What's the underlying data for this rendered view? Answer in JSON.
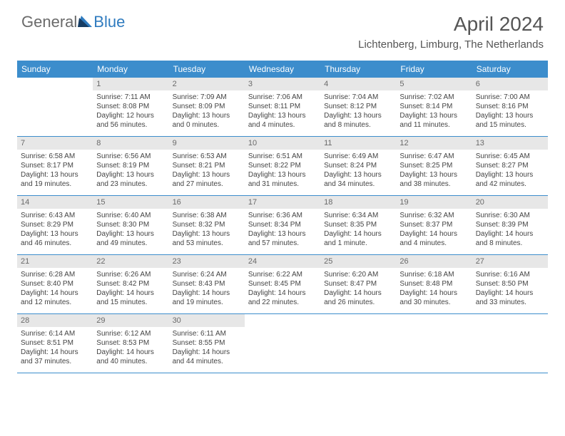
{
  "brand": {
    "part1": "General",
    "part2": "Blue"
  },
  "title": "April 2024",
  "location": "Lichtenberg, Limburg, The Netherlands",
  "colors": {
    "header_bg": "#3c8dcc",
    "header_text": "#ffffff",
    "daynum_bg": "#e7e7e7",
    "border": "#3c8dcc"
  },
  "day_names": [
    "Sunday",
    "Monday",
    "Tuesday",
    "Wednesday",
    "Thursday",
    "Friday",
    "Saturday"
  ],
  "weeks": [
    [
      {
        "n": "",
        "sr": "",
        "ss": "",
        "dl": ""
      },
      {
        "n": "1",
        "sr": "Sunrise: 7:11 AM",
        "ss": "Sunset: 8:08 PM",
        "dl": "Daylight: 12 hours and 56 minutes."
      },
      {
        "n": "2",
        "sr": "Sunrise: 7:09 AM",
        "ss": "Sunset: 8:09 PM",
        "dl": "Daylight: 13 hours and 0 minutes."
      },
      {
        "n": "3",
        "sr": "Sunrise: 7:06 AM",
        "ss": "Sunset: 8:11 PM",
        "dl": "Daylight: 13 hours and 4 minutes."
      },
      {
        "n": "4",
        "sr": "Sunrise: 7:04 AM",
        "ss": "Sunset: 8:12 PM",
        "dl": "Daylight: 13 hours and 8 minutes."
      },
      {
        "n": "5",
        "sr": "Sunrise: 7:02 AM",
        "ss": "Sunset: 8:14 PM",
        "dl": "Daylight: 13 hours and 11 minutes."
      },
      {
        "n": "6",
        "sr": "Sunrise: 7:00 AM",
        "ss": "Sunset: 8:16 PM",
        "dl": "Daylight: 13 hours and 15 minutes."
      }
    ],
    [
      {
        "n": "7",
        "sr": "Sunrise: 6:58 AM",
        "ss": "Sunset: 8:17 PM",
        "dl": "Daylight: 13 hours and 19 minutes."
      },
      {
        "n": "8",
        "sr": "Sunrise: 6:56 AM",
        "ss": "Sunset: 8:19 PM",
        "dl": "Daylight: 13 hours and 23 minutes."
      },
      {
        "n": "9",
        "sr": "Sunrise: 6:53 AM",
        "ss": "Sunset: 8:21 PM",
        "dl": "Daylight: 13 hours and 27 minutes."
      },
      {
        "n": "10",
        "sr": "Sunrise: 6:51 AM",
        "ss": "Sunset: 8:22 PM",
        "dl": "Daylight: 13 hours and 31 minutes."
      },
      {
        "n": "11",
        "sr": "Sunrise: 6:49 AM",
        "ss": "Sunset: 8:24 PM",
        "dl": "Daylight: 13 hours and 34 minutes."
      },
      {
        "n": "12",
        "sr": "Sunrise: 6:47 AM",
        "ss": "Sunset: 8:25 PM",
        "dl": "Daylight: 13 hours and 38 minutes."
      },
      {
        "n": "13",
        "sr": "Sunrise: 6:45 AM",
        "ss": "Sunset: 8:27 PM",
        "dl": "Daylight: 13 hours and 42 minutes."
      }
    ],
    [
      {
        "n": "14",
        "sr": "Sunrise: 6:43 AM",
        "ss": "Sunset: 8:29 PM",
        "dl": "Daylight: 13 hours and 46 minutes."
      },
      {
        "n": "15",
        "sr": "Sunrise: 6:40 AM",
        "ss": "Sunset: 8:30 PM",
        "dl": "Daylight: 13 hours and 49 minutes."
      },
      {
        "n": "16",
        "sr": "Sunrise: 6:38 AM",
        "ss": "Sunset: 8:32 PM",
        "dl": "Daylight: 13 hours and 53 minutes."
      },
      {
        "n": "17",
        "sr": "Sunrise: 6:36 AM",
        "ss": "Sunset: 8:34 PM",
        "dl": "Daylight: 13 hours and 57 minutes."
      },
      {
        "n": "18",
        "sr": "Sunrise: 6:34 AM",
        "ss": "Sunset: 8:35 PM",
        "dl": "Daylight: 14 hours and 1 minute."
      },
      {
        "n": "19",
        "sr": "Sunrise: 6:32 AM",
        "ss": "Sunset: 8:37 PM",
        "dl": "Daylight: 14 hours and 4 minutes."
      },
      {
        "n": "20",
        "sr": "Sunrise: 6:30 AM",
        "ss": "Sunset: 8:39 PM",
        "dl": "Daylight: 14 hours and 8 minutes."
      }
    ],
    [
      {
        "n": "21",
        "sr": "Sunrise: 6:28 AM",
        "ss": "Sunset: 8:40 PM",
        "dl": "Daylight: 14 hours and 12 minutes."
      },
      {
        "n": "22",
        "sr": "Sunrise: 6:26 AM",
        "ss": "Sunset: 8:42 PM",
        "dl": "Daylight: 14 hours and 15 minutes."
      },
      {
        "n": "23",
        "sr": "Sunrise: 6:24 AM",
        "ss": "Sunset: 8:43 PM",
        "dl": "Daylight: 14 hours and 19 minutes."
      },
      {
        "n": "24",
        "sr": "Sunrise: 6:22 AM",
        "ss": "Sunset: 8:45 PM",
        "dl": "Daylight: 14 hours and 22 minutes."
      },
      {
        "n": "25",
        "sr": "Sunrise: 6:20 AM",
        "ss": "Sunset: 8:47 PM",
        "dl": "Daylight: 14 hours and 26 minutes."
      },
      {
        "n": "26",
        "sr": "Sunrise: 6:18 AM",
        "ss": "Sunset: 8:48 PM",
        "dl": "Daylight: 14 hours and 30 minutes."
      },
      {
        "n": "27",
        "sr": "Sunrise: 6:16 AM",
        "ss": "Sunset: 8:50 PM",
        "dl": "Daylight: 14 hours and 33 minutes."
      }
    ],
    [
      {
        "n": "28",
        "sr": "Sunrise: 6:14 AM",
        "ss": "Sunset: 8:51 PM",
        "dl": "Daylight: 14 hours and 37 minutes."
      },
      {
        "n": "29",
        "sr": "Sunrise: 6:12 AM",
        "ss": "Sunset: 8:53 PM",
        "dl": "Daylight: 14 hours and 40 minutes."
      },
      {
        "n": "30",
        "sr": "Sunrise: 6:11 AM",
        "ss": "Sunset: 8:55 PM",
        "dl": "Daylight: 14 hours and 44 minutes."
      },
      {
        "n": "",
        "sr": "",
        "ss": "",
        "dl": ""
      },
      {
        "n": "",
        "sr": "",
        "ss": "",
        "dl": ""
      },
      {
        "n": "",
        "sr": "",
        "ss": "",
        "dl": ""
      },
      {
        "n": "",
        "sr": "",
        "ss": "",
        "dl": ""
      }
    ]
  ]
}
